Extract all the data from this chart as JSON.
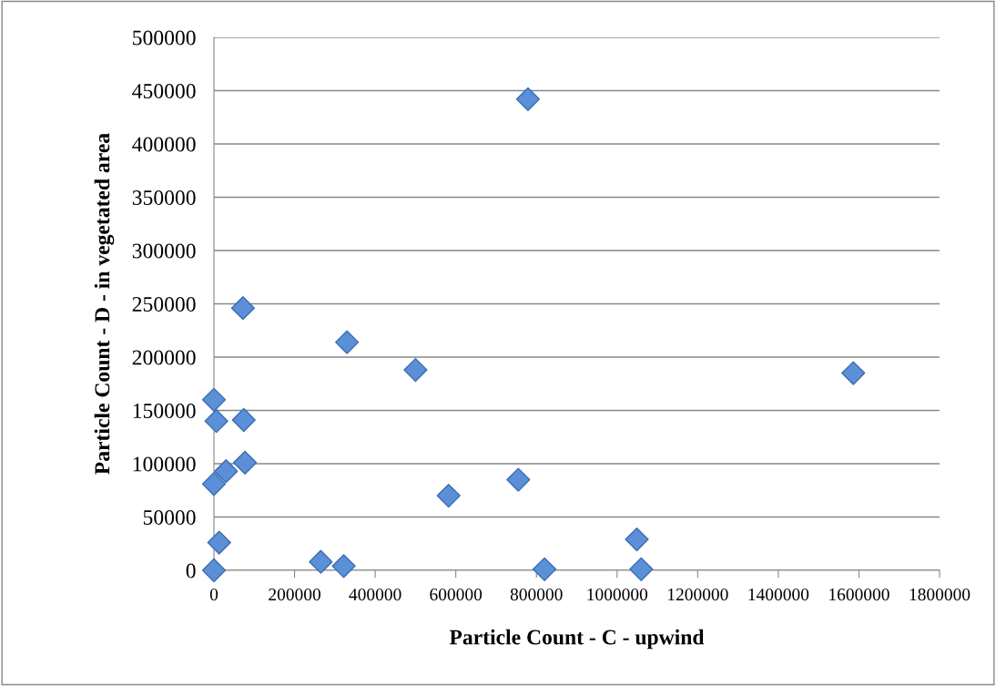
{
  "chart_data": {
    "type": "scatter",
    "xlabel": "Particle Count - C - upwind",
    "ylabel": "Particle Count - D - in vegetated area",
    "series": [
      {
        "color": "#5b8fd8",
        "x": [
          0,
          13000,
          0,
          30000,
          77000,
          6000,
          74000,
          0,
          72000,
          265000,
          322000,
          330000,
          500000,
          582000,
          755000,
          779000,
          820000,
          1049000,
          1060000,
          1586000
        ],
        "values": [
          0,
          26000,
          81000,
          93000,
          101000,
          140000,
          141000,
          160000,
          246000,
          8000,
          4000,
          214000,
          188000,
          70000,
          85000,
          442000,
          1000,
          29000,
          1000,
          185000
        ]
      }
    ],
    "xlim": [
      0,
      1800000
    ],
    "xticks": [
      0,
      200000,
      400000,
      600000,
      800000,
      1000000,
      1200000,
      1400000,
      1600000,
      1800000
    ],
    "ylim": [
      0,
      500000
    ],
    "yticks": [
      0,
      50000,
      100000,
      150000,
      200000,
      250000,
      300000,
      350000,
      400000,
      450000,
      500000
    ],
    "grid": "y",
    "marker": "diamond",
    "legend": false
  }
}
